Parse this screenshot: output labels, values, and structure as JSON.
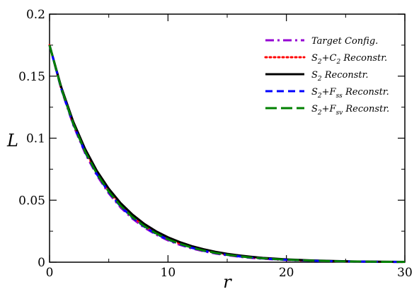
{
  "chart_data": {
    "type": "line",
    "title": "",
    "xlabel": "r",
    "ylabel": "L",
    "xlim": [
      0,
      30
    ],
    "ylim": [
      0,
      0.2
    ],
    "x_ticks": [
      "0",
      "10",
      "20",
      "30"
    ],
    "y_ticks": [
      "0",
      "0.05",
      "0.1",
      "0.15",
      "0.2"
    ],
    "grid": false,
    "legend_position": "top-right",
    "x": [
      0,
      1,
      2,
      3,
      4,
      5,
      6,
      7,
      8,
      9,
      10,
      11,
      12,
      13,
      14,
      15,
      16,
      17,
      18,
      19,
      20,
      22,
      24,
      26,
      28,
      30
    ],
    "series": [
      {
        "legend_main": "Target Config.",
        "sub1": "",
        "plus": "",
        "sub2": "",
        "tail": "",
        "color": "#9400d3",
        "style": "dashdot",
        "values": [
          0.175,
          0.1391,
          0.1106,
          0.0879,
          0.0699,
          0.0555,
          0.0441,
          0.0351,
          0.0279,
          0.0222,
          0.0176,
          0.014,
          0.0111,
          0.0088,
          0.007,
          0.0056,
          0.0044,
          0.0035,
          0.0028,
          0.0022,
          0.0018,
          0.0011,
          0.0007,
          0.0004,
          0.0003,
          0.0002
        ]
      },
      {
        "legend_main": "S",
        "sub1": "2",
        "plus": "+C",
        "sub2": "2",
        "tail": " Reconstr.",
        "color": "#ff0000",
        "style": "dotted",
        "values": [
          0.175,
          0.14,
          0.1121,
          0.0897,
          0.0718,
          0.0574,
          0.046,
          0.0368,
          0.0294,
          0.0236,
          0.0188,
          0.0151,
          0.0121,
          0.0097,
          0.0077,
          0.0062,
          0.0049,
          0.004,
          0.0032,
          0.0025,
          0.002,
          0.0013,
          0.0008,
          0.0005,
          0.0003,
          0.0002
        ]
      },
      {
        "legend_main": "S",
        "sub1": "2",
        "plus": "",
        "sub2": "",
        "tail": " Reconstr.",
        "color": "#000000",
        "style": "solid",
        "values": [
          0.175,
          0.1409,
          0.1134,
          0.0914,
          0.0736,
          0.0593,
          0.0477,
          0.0384,
          0.0309,
          0.0249,
          0.0201,
          0.0162,
          0.013,
          0.0105,
          0.0084,
          0.0068,
          0.0055,
          0.0044,
          0.0035,
          0.0029,
          0.0023,
          0.0015,
          0.001,
          0.0006,
          0.0004,
          0.0003
        ]
      },
      {
        "legend_main": "S",
        "sub1": "2",
        "plus": "+F",
        "sub2": "ss",
        "tail": " Reconstr.",
        "color": "#0000ff",
        "style": "dashed",
        "values": [
          0.175,
          0.1395,
          0.1113,
          0.0887,
          0.0708,
          0.0564,
          0.045,
          0.0359,
          0.0286,
          0.0228,
          0.0182,
          0.0145,
          0.0116,
          0.0092,
          0.0074,
          0.0059,
          0.0047,
          0.0037,
          0.003,
          0.0024,
          0.0019,
          0.0012,
          0.0008,
          0.0005,
          0.0003,
          0.0002
        ]
      },
      {
        "legend_main": "S",
        "sub1": "2",
        "plus": "+F",
        "sub2": "sv",
        "tail": " Reconstr.",
        "color": "#008000",
        "style": "longdash",
        "values": [
          0.175,
          0.1398,
          0.1117,
          0.0892,
          0.0713,
          0.0569,
          0.0455,
          0.0363,
          0.029,
          0.0232,
          0.0185,
          0.0148,
          0.0118,
          0.0094,
          0.0075,
          0.006,
          0.0048,
          0.0038,
          0.0031,
          0.0025,
          0.002,
          0.0013,
          0.0008,
          0.0005,
          0.0003,
          0.0002
        ]
      }
    ]
  }
}
